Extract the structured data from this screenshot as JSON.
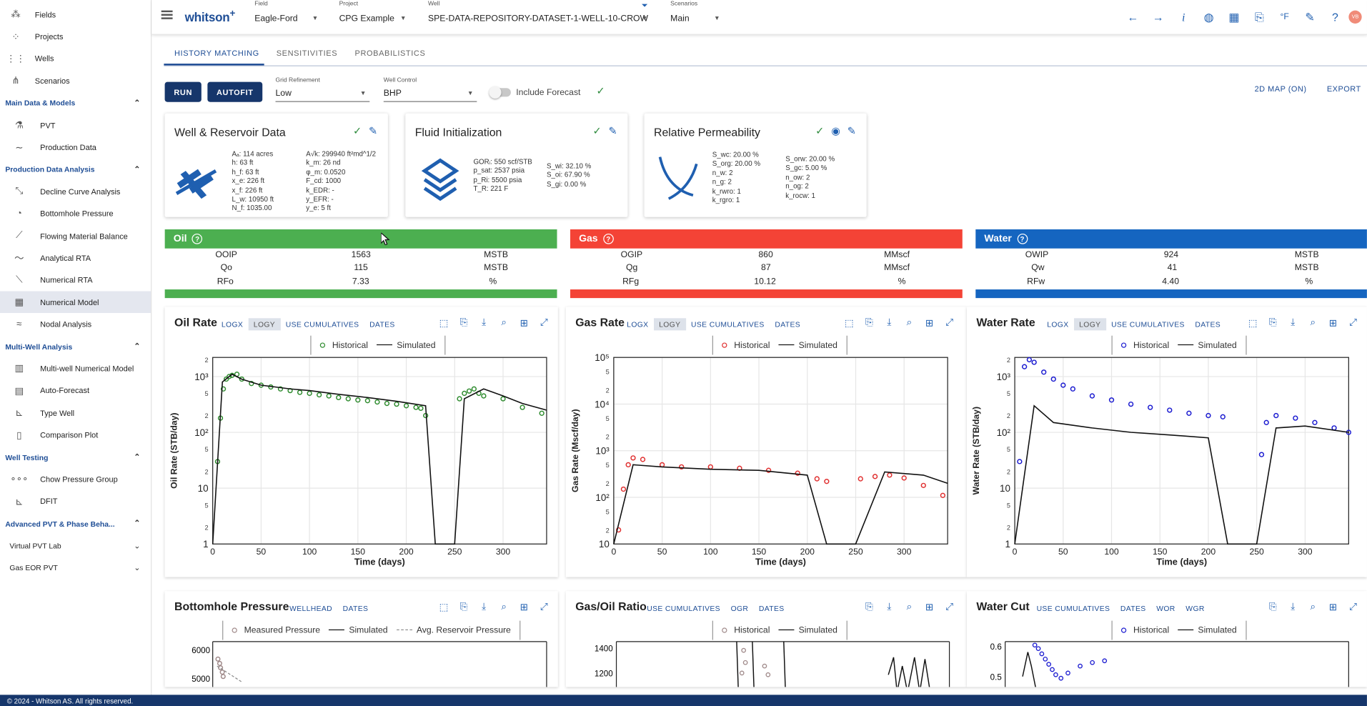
{
  "sidebar": {
    "top_items": [
      {
        "label": "Fields",
        "icon": "fields-icon"
      },
      {
        "label": "Projects",
        "icon": "projects-icon"
      },
      {
        "label": "Wells",
        "icon": "wells-icon"
      },
      {
        "label": "Scenarios",
        "icon": "scenarios-icon"
      }
    ],
    "sections": [
      {
        "label": "Main Data & Models",
        "items": [
          "PVT",
          "Production Data"
        ]
      },
      {
        "label": "Production Data Analysis",
        "items": [
          "Decline Curve Analysis",
          "Bottomhole Pressure",
          "Flowing Material Balance",
          "Analytical RTA",
          "Numerical RTA",
          "Numerical Model",
          "Nodal Analysis"
        ]
      },
      {
        "label": "Multi-Well Analysis",
        "items": [
          "Multi-well Numerical Model",
          "Auto-Forecast",
          "Type Well",
          "Comparison Plot"
        ]
      },
      {
        "label": "Well Testing",
        "items": [
          "Chow Pressure Group",
          "DFIT"
        ]
      },
      {
        "label": "Advanced PVT & Phase Beha...",
        "items": []
      }
    ],
    "collapsed": [
      "Virtual PVT Lab",
      "Gas EOR PVT"
    ],
    "active_item": "Numerical Model"
  },
  "topbar": {
    "logo": "whitson",
    "logo_plus": "+",
    "field": {
      "caption": "Field",
      "value": "Eagle-Ford"
    },
    "project": {
      "caption": "Project",
      "value": "CPG Example"
    },
    "well": {
      "caption": "Well",
      "value": "SPE-DATA-REPOSITORY-DATASET-1-WELL-10-CROW"
    },
    "scenario": {
      "caption": "Scenarios",
      "value": "Main"
    },
    "avatar": "VB"
  },
  "tabs": [
    "HISTORY MATCHING",
    "SENSITIVITIES",
    "PROBABILISTICS"
  ],
  "controls": {
    "run": "RUN",
    "autofit": "AUTOFIT",
    "grid_refinement": {
      "caption": "Grid Refinement",
      "value": "Low"
    },
    "well_control": {
      "caption": "Well Control",
      "value": "BHP"
    },
    "include_forecast": "Include Forecast",
    "map_link": "2D MAP (ON)",
    "export_link": "EXPORT"
  },
  "cards": {
    "well_reservoir": {
      "title": "Well & Reservoir Data",
      "left": [
        "Aₐ: 114 acres",
        "h: 63 ft",
        "h_f: 63 ft",
        "x_e: 226 ft",
        "x_f: 226 ft",
        "L_w: 10950 ft",
        "N_f: 1035.00"
      ],
      "right": [
        "A√k: 299940 ft²md^1/2",
        "k_m: 26 nd",
        "φ_m: 0.0520",
        "F_cd: 1000",
        "k_EDR: -",
        "y_EFR: -",
        "y_e: 5 ft"
      ]
    },
    "fluid_init": {
      "title": "Fluid Initialization",
      "left": [
        "GORᵢ: 550 scf/STB",
        "p_sat: 2537 psia",
        "p_Ri: 5500 psia",
        "T_R: 221 F"
      ],
      "right": [
        "S_wi: 32.10 %",
        "S_oi: 67.90 %",
        "S_gi: 0.00 %"
      ]
    },
    "rel_perm": {
      "title": "Relative Permeability",
      "left": [
        "S_wc: 20.00 %",
        "S_org: 20.00 %",
        "n_w: 2",
        "n_g: 2",
        "k_rwro: 1",
        "k_rgro: 1"
      ],
      "right": [
        "S_orw: 20.00 %",
        "S_gc: 5.00 %",
        "n_ow: 2",
        "n_og: 2",
        "k_rocw: 1"
      ]
    }
  },
  "summary": {
    "oil": {
      "title": "Oil",
      "rows": [
        [
          "OOIP",
          "1563",
          "MSTB"
        ],
        [
          "Qo",
          "115",
          "MSTB"
        ],
        [
          "RFo",
          "7.33",
          "%"
        ]
      ]
    },
    "gas": {
      "title": "Gas",
      "rows": [
        [
          "OGIP",
          "860",
          "MMscf"
        ],
        [
          "Qg",
          "87",
          "MMscf"
        ],
        [
          "RFg",
          "10.12",
          "%"
        ]
      ]
    },
    "water": {
      "title": "Water",
      "rows": [
        [
          "OWIP",
          "924",
          "MSTB"
        ],
        [
          "Qw",
          "41",
          "MSTB"
        ],
        [
          "RFw",
          "4.40",
          "%"
        ]
      ]
    }
  },
  "panels": {
    "oil_rate": {
      "title": "Oil Rate",
      "links": [
        "LOGX",
        "LOGY",
        "USE CUMULATIVES",
        "DATES"
      ],
      "legend": [
        "Historical",
        "Simulated"
      ]
    },
    "gas_rate": {
      "title": "Gas Rate",
      "links": [
        "LOGX",
        "LOGY",
        "USE CUMULATIVES",
        "DATES"
      ],
      "legend": [
        "Historical",
        "Simulated"
      ]
    },
    "water_rate": {
      "title": "Water Rate",
      "links": [
        "LOGX",
        "LOGY",
        "USE CUMULATIVES",
        "DATES"
      ],
      "legend": [
        "Historical",
        "Simulated"
      ]
    },
    "bhp": {
      "title": "Bottomhole Pressure",
      "links": [
        "WELLHEAD",
        "DATES"
      ],
      "legend": [
        "Measured Pressure",
        "Simulated",
        "Avg. Reservoir Pressure"
      ],
      "yticks": [
        "6000",
        "5000"
      ]
    },
    "gor": {
      "title": "Gas/Oil Ratio",
      "links": [
        "USE CUMULATIVES",
        "OGR",
        "DATES"
      ],
      "legend": [
        "Historical",
        "Simulated"
      ],
      "yticks": [
        "1400",
        "1200"
      ]
    },
    "wcut": {
      "title": "Water Cut",
      "links": [
        "USE CUMULATIVES",
        "DATES",
        "WOR",
        "WGR"
      ],
      "legend": [
        "Historical",
        "Simulated"
      ],
      "yticks": [
        "0.6",
        "0.5"
      ]
    }
  },
  "chart_data": [
    {
      "type": "scatter",
      "title": "Oil Rate",
      "xlabel": "Time (days)",
      "ylabel": "Oil Rate (STB/day)",
      "xlim": [
        0,
        345
      ],
      "ylim": [
        1,
        2200
      ],
      "yscale": "log",
      "xticks": [
        "0",
        "50",
        "100",
        "150",
        "200",
        "250",
        "300"
      ],
      "series": [
        {
          "name": "Historical",
          "color": "#2e8b2e",
          "kind": "markers",
          "x": [
            5,
            8,
            11,
            14,
            17,
            20,
            25,
            30,
            40,
            50,
            60,
            70,
            80,
            90,
            100,
            110,
            120,
            130,
            140,
            150,
            160,
            170,
            180,
            190,
            200,
            210,
            215,
            220,
            255,
            260,
            265,
            270,
            275,
            280,
            300,
            320,
            340
          ],
          "y": [
            30,
            180,
            600,
            900,
            1000,
            1050,
            1100,
            900,
            750,
            700,
            650,
            600,
            560,
            520,
            500,
            470,
            450,
            420,
            400,
            380,
            370,
            350,
            330,
            320,
            300,
            280,
            270,
            200,
            400,
            500,
            550,
            600,
            500,
            450,
            400,
            280,
            220
          ]
        },
        {
          "name": "Simulated",
          "color": "#111111",
          "kind": "line",
          "x": [
            0,
            10,
            20,
            30,
            50,
            80,
            100,
            130,
            160,
            190,
            220,
            230,
            250,
            260,
            280,
            300,
            320,
            345
          ],
          "y": [
            1,
            800,
            1100,
            900,
            700,
            600,
            560,
            480,
            420,
            360,
            300,
            1,
            1,
            400,
            600,
            450,
            330,
            250
          ]
        }
      ]
    },
    {
      "type": "scatter",
      "title": "Gas Rate",
      "xlabel": "Time (days)",
      "ylabel": "Gas Rate (Mscf/day)",
      "xlim": [
        0,
        345
      ],
      "ylim": [
        10,
        100000
      ],
      "yscale": "log",
      "xticks": [
        "0",
        "50",
        "100",
        "150",
        "200",
        "250",
        "300"
      ],
      "series": [
        {
          "name": "Historical",
          "color": "#e03030",
          "kind": "markers",
          "x": [
            5,
            10,
            15,
            20,
            30,
            50,
            70,
            100,
            130,
            160,
            190,
            210,
            220,
            255,
            270,
            285,
            300,
            320,
            340
          ],
          "y": [
            20,
            150,
            500,
            700,
            650,
            500,
            450,
            450,
            420,
            380,
            330,
            250,
            220,
            250,
            280,
            300,
            260,
            180,
            110
          ]
        },
        {
          "name": "Simulated",
          "color": "#111111",
          "kind": "line",
          "x": [
            0,
            20,
            50,
            100,
            150,
            200,
            220,
            250,
            280,
            320,
            345
          ],
          "y": [
            10,
            500,
            450,
            400,
            380,
            300,
            10,
            10,
            350,
            300,
            200
          ]
        }
      ]
    },
    {
      "type": "scatter",
      "title": "Water Rate",
      "xlabel": "Time (days)",
      "ylabel": "Water Rate (STB/day)",
      "xlim": [
        0,
        345
      ],
      "ylim": [
        1,
        2200
      ],
      "yscale": "log",
      "xticks": [
        "0",
        "50",
        "100",
        "150",
        "200",
        "250",
        "300"
      ],
      "series": [
        {
          "name": "Historical",
          "color": "#1a1ad0",
          "kind": "markers",
          "x": [
            5,
            10,
            15,
            20,
            30,
            40,
            50,
            60,
            80,
            100,
            120,
            140,
            160,
            180,
            200,
            215,
            255,
            260,
            270,
            290,
            310,
            330,
            345
          ],
          "y": [
            30,
            1500,
            2000,
            1800,
            1200,
            900,
            700,
            600,
            450,
            380,
            320,
            280,
            250,
            220,
            200,
            190,
            40,
            150,
            200,
            180,
            150,
            120,
            100
          ]
        },
        {
          "name": "Simulated",
          "color": "#111111",
          "kind": "line",
          "x": [
            0,
            20,
            40,
            80,
            120,
            160,
            200,
            220,
            250,
            270,
            300,
            345
          ],
          "y": [
            1,
            300,
            150,
            120,
            100,
            90,
            80,
            1,
            1,
            120,
            130,
            100
          ]
        }
      ]
    }
  ],
  "footer": "© 2024 - Whitson AS. All rights reserved."
}
